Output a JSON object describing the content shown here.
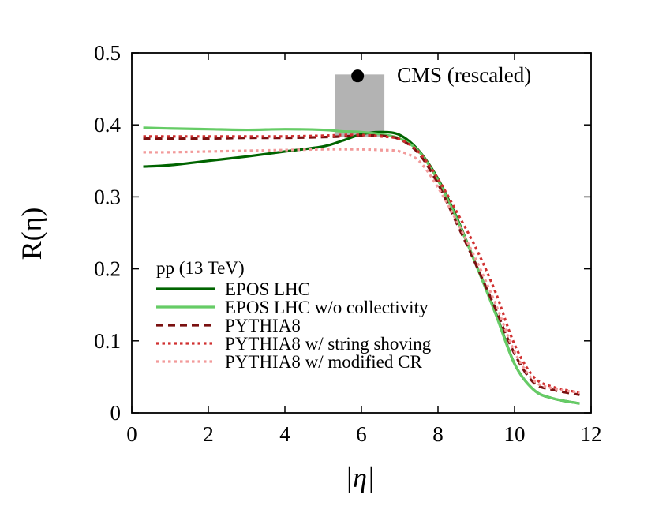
{
  "chart_data": {
    "type": "line",
    "title": "",
    "xlabel": "|η|",
    "ylabel": "R(η)",
    "xlim": [
      0,
      12
    ],
    "ylim": [
      0,
      0.5
    ],
    "xticks": [
      0,
      2,
      4,
      6,
      8,
      10,
      12
    ],
    "yticks": [
      0,
      0.1,
      0.2,
      0.3,
      0.4,
      0.5
    ],
    "xtick_labels": [
      "0",
      "2",
      "4",
      "6",
      "8",
      "10",
      "12"
    ],
    "ytick_labels": [
      "0",
      "0.1",
      "0.2",
      "0.3",
      "0.4",
      "0.5"
    ],
    "grid": false,
    "legend": {
      "title": "pp (13 TeV)",
      "position": "bottom-left"
    },
    "series": [
      {
        "name": "EPOS LHC",
        "color": "#006400",
        "style": "solid",
        "x": [
          0.3,
          1.0,
          2.0,
          3.0,
          4.0,
          5.0,
          5.5,
          6.0,
          6.5,
          7.0,
          7.5,
          8.0,
          8.5,
          9.0,
          9.5,
          10.0,
          10.5,
          11.0,
          11.7
        ],
        "y": [
          0.342,
          0.344,
          0.35,
          0.356,
          0.363,
          0.37,
          0.378,
          0.387,
          0.39,
          0.386,
          0.364,
          0.325,
          0.27,
          0.205,
          0.14,
          0.068,
          0.032,
          0.02,
          0.013
        ]
      },
      {
        "name": "EPOS LHC w/o collectivity",
        "color": "#66cc66",
        "style": "solid",
        "x": [
          0.3,
          1.0,
          2.0,
          3.0,
          4.0,
          5.0,
          5.5,
          6.0,
          6.5,
          7.0,
          7.5,
          8.0,
          8.5,
          9.0,
          9.5,
          10.0,
          10.5,
          11.0,
          11.7
        ],
        "y": [
          0.396,
          0.395,
          0.394,
          0.393,
          0.394,
          0.393,
          0.391,
          0.39,
          0.387,
          0.381,
          0.363,
          0.323,
          0.268,
          0.205,
          0.138,
          0.068,
          0.032,
          0.02,
          0.013
        ]
      },
      {
        "name": "PYTHIA8",
        "color": "#7a1010",
        "style": "dashed",
        "x": [
          0.3,
          1.0,
          2.0,
          3.0,
          4.0,
          5.0,
          5.5,
          6.0,
          6.5,
          7.0,
          7.5,
          8.0,
          8.5,
          9.0,
          9.5,
          10.0,
          10.5,
          11.0,
          11.7
        ],
        "y": [
          0.381,
          0.381,
          0.381,
          0.382,
          0.382,
          0.383,
          0.384,
          0.385,
          0.385,
          0.38,
          0.36,
          0.318,
          0.262,
          0.205,
          0.145,
          0.082,
          0.042,
          0.032,
          0.025
        ]
      },
      {
        "name": "PYTHIA8 w/ string shoving",
        "color": "#d03030",
        "style": "dotted",
        "x": [
          0.3,
          1.0,
          2.0,
          3.0,
          4.0,
          5.0,
          5.5,
          6.0,
          6.5,
          7.0,
          7.5,
          8.0,
          8.5,
          9.0,
          9.5,
          10.0,
          10.5,
          11.0,
          11.7
        ],
        "y": [
          0.384,
          0.384,
          0.384,
          0.384,
          0.384,
          0.385,
          0.386,
          0.386,
          0.384,
          0.38,
          0.362,
          0.325,
          0.278,
          0.228,
          0.168,
          0.095,
          0.05,
          0.036,
          0.028
        ]
      },
      {
        "name": "PYTHIA8 w/ modified CR",
        "color": "#f29a9a",
        "style": "dotted",
        "x": [
          0.3,
          1.0,
          2.0,
          3.0,
          4.0,
          5.0,
          5.5,
          6.0,
          6.5,
          7.0,
          7.5,
          8.0,
          8.5,
          9.0,
          9.5,
          10.0,
          10.5,
          11.0,
          11.7
        ],
        "y": [
          0.362,
          0.362,
          0.363,
          0.364,
          0.365,
          0.366,
          0.366,
          0.366,
          0.365,
          0.363,
          0.35,
          0.313,
          0.265,
          0.212,
          0.152,
          0.085,
          0.045,
          0.034,
          0.028
        ]
      }
    ],
    "cms": {
      "label": "CMS (rescaled)",
      "x": 5.9,
      "y": 0.468,
      "band_x": [
        5.3,
        6.6
      ],
      "band_y": [
        0.383,
        0.47
      ],
      "color": "#000000",
      "band_color": "#b3b3b3"
    }
  }
}
